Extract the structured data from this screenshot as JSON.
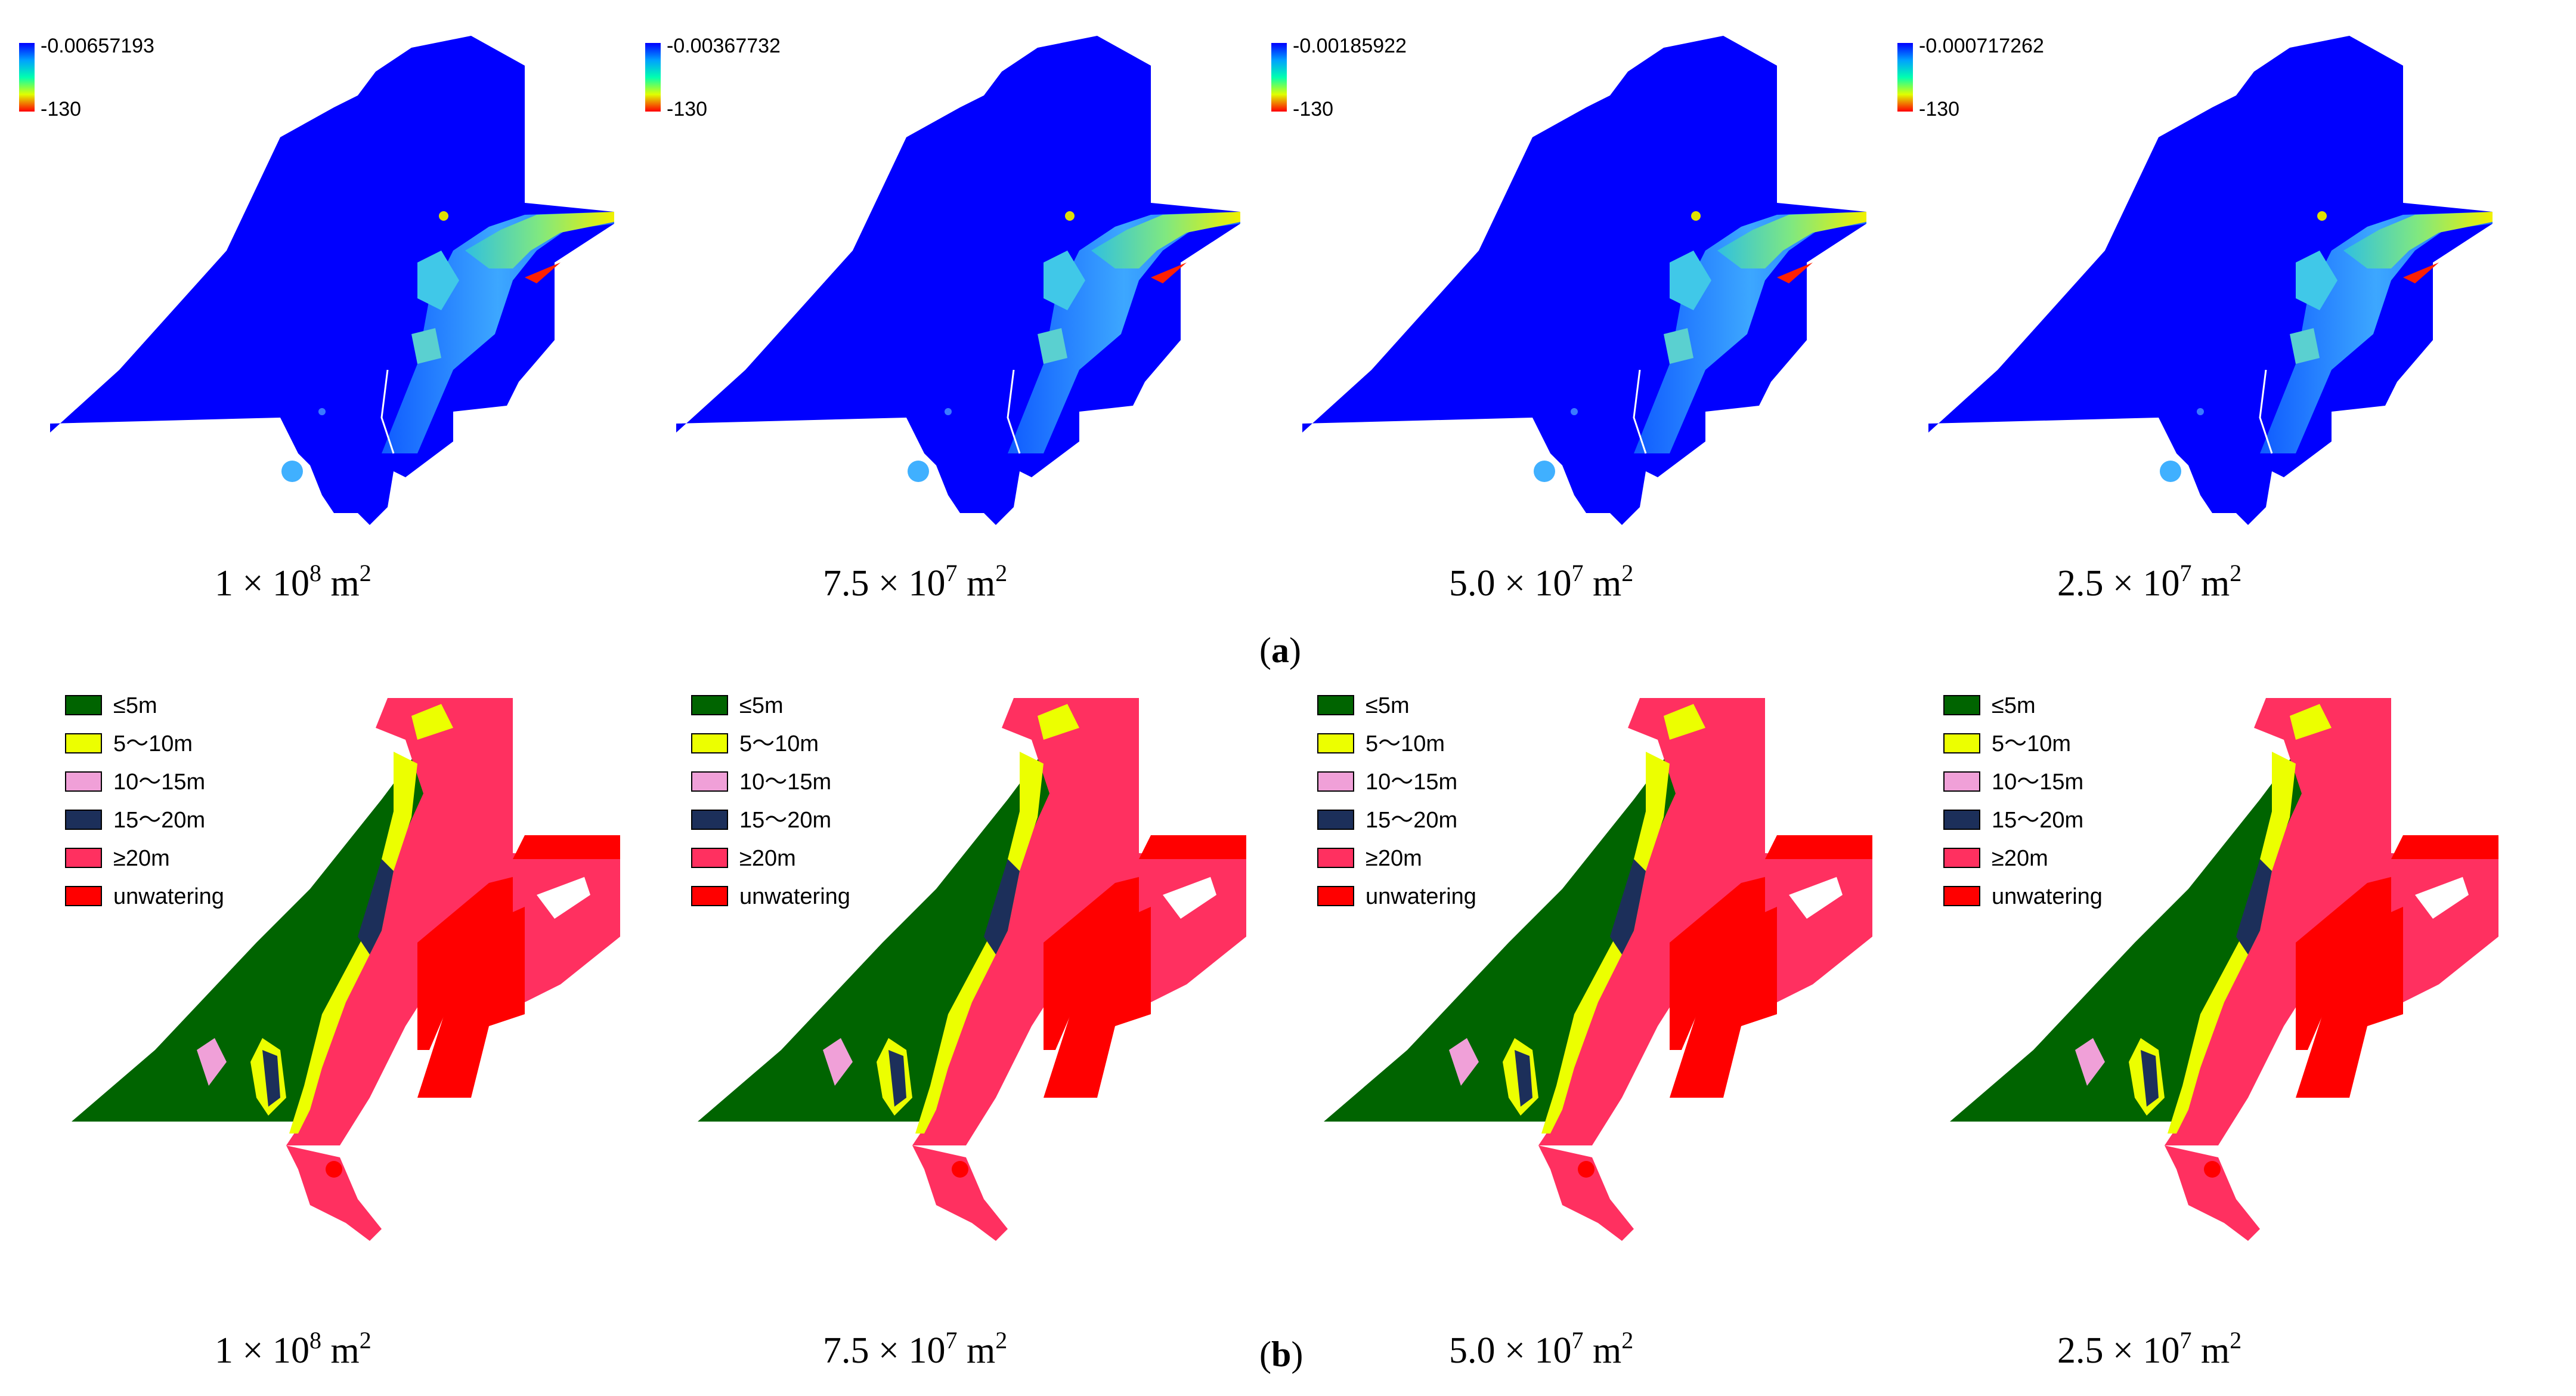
{
  "row_a": {
    "label_open": "(",
    "label_letter": "a",
    "label_close": ")",
    "colorbar_colors": [
      "#0000ff",
      "#00a0ff",
      "#00ffb0",
      "#e0ff00",
      "#ff0000"
    ],
    "panels": [
      {
        "cb_top": "-0.00657193",
        "cb_bottom": "-130",
        "area_base": "1 × 10",
        "area_exp": "8",
        "area_unit": " m",
        "area_unit_exp": "2"
      },
      {
        "cb_top": "-0.00367732",
        "cb_bottom": "-130",
        "area_base": "7.5 × 10",
        "area_exp": "7",
        "area_unit": " m",
        "area_unit_exp": "2"
      },
      {
        "cb_top": "-0.00185922",
        "cb_bottom": "-130",
        "area_base": "5.0 × 10",
        "area_exp": "7",
        "area_unit": " m",
        "area_unit_exp": "2"
      },
      {
        "cb_top": "-0.000717262",
        "cb_bottom": "-130",
        "area_base": "2.5 × 10",
        "area_exp": "7",
        "area_unit": " m",
        "area_unit_exp": "2"
      }
    ],
    "map_colors": {
      "background_water": "#0000ff",
      "mid": "#4aa0ff",
      "cyan": "#33ddcc",
      "yellow": "#e6f000",
      "red": "#ff2000"
    }
  },
  "row_b": {
    "label_open": "(",
    "label_letter": "b",
    "label_close": ")",
    "legend": [
      {
        "label": "≤5m",
        "color": "#006400"
      },
      {
        "label": "5～10m",
        "color": "#ecff00"
      },
      {
        "label": "10～15m",
        "color": "#f0a0d8"
      },
      {
        "label": "15～20m",
        "color": "#1c2f5a"
      },
      {
        "label": "≥20m",
        "color": "#ff3060"
      },
      {
        "label": "unwatering",
        "color": "#ff0000"
      }
    ],
    "panels": [
      {
        "area_base": "1 × 10",
        "area_exp": "8",
        "area_unit": " m",
        "area_unit_exp": "2"
      },
      {
        "area_base": "7.5 × 10",
        "area_exp": "7",
        "area_unit": " m",
        "area_unit_exp": "2"
      },
      {
        "area_base": "5.0 × 10",
        "area_exp": "7",
        "area_unit": " m",
        "area_unit_exp": "2"
      },
      {
        "area_base": "2.5 × 10",
        "area_exp": "7",
        "area_unit": " m",
        "area_unit_exp": "2"
      }
    ]
  }
}
